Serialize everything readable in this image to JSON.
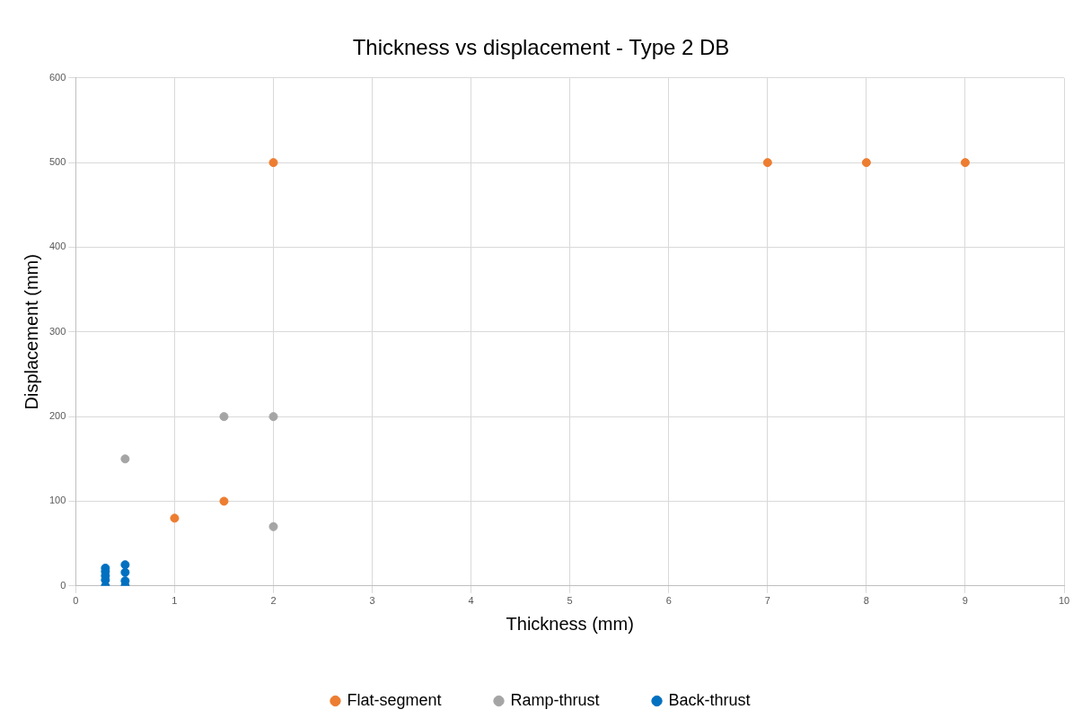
{
  "chart_data": {
    "type": "scatter",
    "title": "Thickness vs displacement - Type 2 DB",
    "xlabel": "Thickness (mm)",
    "ylabel": "Displacement (mm)",
    "xlim": [
      0,
      10
    ],
    "xticks": [
      0,
      1,
      2,
      3,
      4,
      5,
      6,
      7,
      8,
      9,
      10
    ],
    "ylim": [
      0,
      600
    ],
    "yticks": [
      0,
      100,
      200,
      300,
      400,
      500,
      600
    ],
    "grid": true,
    "legend": "bottom",
    "marker": "circle",
    "series": [
      {
        "name": "Flat-segment",
        "color": "#ed7d31",
        "x": [
          1,
          1.5,
          2,
          7,
          8,
          9
        ],
        "values": [
          80,
          100,
          500,
          500,
          500,
          500
        ]
      },
      {
        "name": "Ramp-thrust",
        "color": "#a5a5a5",
        "x": [
          0.5,
          1.5,
          2,
          2
        ],
        "values": [
          150,
          200,
          200,
          70
        ]
      },
      {
        "name": "Back-thrust",
        "color": "#0070c0",
        "x": [
          0.3,
          0.3,
          0.3,
          0.3,
          0.3,
          0.5,
          0.5,
          0.5,
          0.5
        ],
        "values": [
          0,
          7,
          12,
          17,
          21,
          0,
          6,
          16,
          25
        ]
      }
    ]
  }
}
